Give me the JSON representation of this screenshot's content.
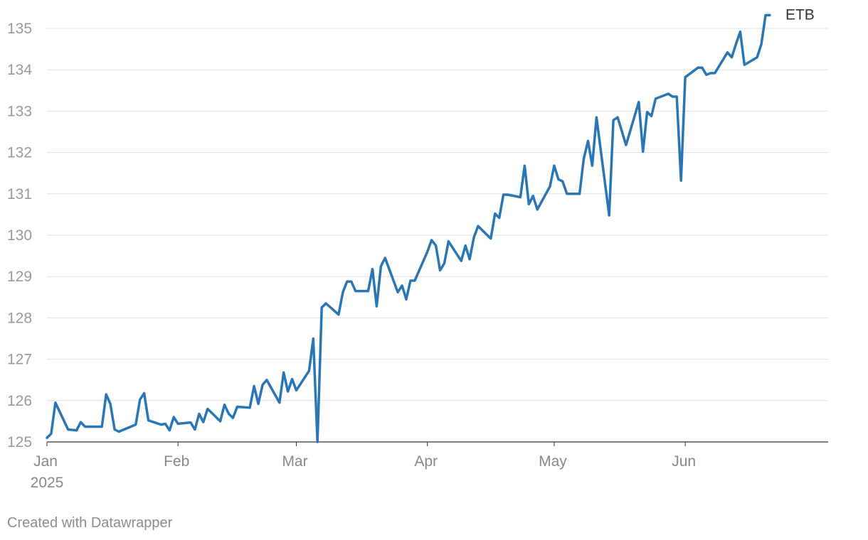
{
  "chart_data": {
    "type": "line",
    "title": "",
    "xlabel": "",
    "ylabel": "",
    "xlim": [
      "2025-01-01",
      "2025-06-20"
    ],
    "ylim": [
      125,
      135
    ],
    "grid": true,
    "y_ticks": [
      "125",
      "126",
      "127",
      "128",
      "129",
      "130",
      "131",
      "132",
      "133",
      "134",
      "135"
    ],
    "x_ticks": [
      {
        "date": "2025-01-01",
        "label": "Jan",
        "sublabel": "2025"
      },
      {
        "date": "2025-02-01",
        "label": "Feb",
        "sublabel": ""
      },
      {
        "date": "2025-03-01",
        "label": "Mar",
        "sublabel": ""
      },
      {
        "date": "2025-04-01",
        "label": "Apr",
        "sublabel": ""
      },
      {
        "date": "2025-05-01",
        "label": "May",
        "sublabel": ""
      },
      {
        "date": "2025-06-01",
        "label": "Jun",
        "sublabel": ""
      }
    ],
    "series": [
      {
        "name": "ETB",
        "color": "#2a76b4",
        "points": [
          [
            "2025-01-01",
            125.1
          ],
          [
            "2025-01-02",
            125.2
          ],
          [
            "2025-01-03",
            125.95
          ],
          [
            "2025-01-06",
            125.3
          ],
          [
            "2025-01-08",
            125.28
          ],
          [
            "2025-01-09",
            125.48
          ],
          [
            "2025-01-10",
            125.37
          ],
          [
            "2025-01-14",
            125.37
          ],
          [
            "2025-01-15",
            126.15
          ],
          [
            "2025-01-16",
            125.92
          ],
          [
            "2025-01-17",
            125.3
          ],
          [
            "2025-01-18",
            125.25
          ],
          [
            "2025-01-22",
            125.42
          ],
          [
            "2025-01-23",
            126.02
          ],
          [
            "2025-01-24",
            126.18
          ],
          [
            "2025-01-25",
            125.52
          ],
          [
            "2025-01-28",
            125.42
          ],
          [
            "2025-01-29",
            125.44
          ],
          [
            "2025-01-30",
            125.28
          ],
          [
            "2025-01-31",
            125.6
          ],
          [
            "2025-02-01",
            125.44
          ],
          [
            "2025-02-04",
            125.47
          ],
          [
            "2025-02-05",
            125.3
          ],
          [
            "2025-02-06",
            125.68
          ],
          [
            "2025-02-07",
            125.48
          ],
          [
            "2025-02-08",
            125.8
          ],
          [
            "2025-02-11",
            125.5
          ],
          [
            "2025-02-12",
            125.9
          ],
          [
            "2025-02-13",
            125.68
          ],
          [
            "2025-02-14",
            125.58
          ],
          [
            "2025-02-15",
            125.85
          ],
          [
            "2025-02-18",
            125.83
          ],
          [
            "2025-02-19",
            126.35
          ],
          [
            "2025-02-20",
            125.92
          ],
          [
            "2025-02-21",
            126.38
          ],
          [
            "2025-02-22",
            126.5
          ],
          [
            "2025-02-25",
            125.95
          ],
          [
            "2025-02-26",
            126.68
          ],
          [
            "2025-02-27",
            126.22
          ],
          [
            "2025-02-28",
            126.52
          ],
          [
            "2025-03-01",
            126.25
          ],
          [
            "2025-03-04",
            126.72
          ],
          [
            "2025-03-05",
            127.5
          ],
          [
            "2025-03-06",
            125.0
          ],
          [
            "2025-03-07",
            128.25
          ],
          [
            "2025-03-08",
            128.35
          ],
          [
            "2025-03-11",
            128.08
          ],
          [
            "2025-03-12",
            128.62
          ],
          [
            "2025-03-13",
            128.88
          ],
          [
            "2025-03-14",
            128.88
          ],
          [
            "2025-03-15",
            128.65
          ],
          [
            "2025-03-18",
            128.65
          ],
          [
            "2025-03-19",
            129.18
          ],
          [
            "2025-03-20",
            128.28
          ],
          [
            "2025-03-21",
            129.25
          ],
          [
            "2025-03-22",
            129.45
          ],
          [
            "2025-03-25",
            128.62
          ],
          [
            "2025-03-26",
            128.78
          ],
          [
            "2025-03-27",
            128.45
          ],
          [
            "2025-03-28",
            128.9
          ],
          [
            "2025-03-29",
            128.9
          ],
          [
            "2025-04-01",
            129.6
          ],
          [
            "2025-04-02",
            129.88
          ],
          [
            "2025-04-03",
            129.75
          ],
          [
            "2025-04-04",
            129.15
          ],
          [
            "2025-04-05",
            129.32
          ],
          [
            "2025-04-06",
            129.85
          ],
          [
            "2025-04-09",
            129.38
          ],
          [
            "2025-04-10",
            129.75
          ],
          [
            "2025-04-11",
            129.42
          ],
          [
            "2025-04-12",
            129.95
          ],
          [
            "2025-04-13",
            130.22
          ],
          [
            "2025-04-16",
            129.92
          ],
          [
            "2025-04-17",
            130.52
          ],
          [
            "2025-04-18",
            130.42
          ],
          [
            "2025-04-19",
            130.98
          ],
          [
            "2025-04-20",
            130.98
          ],
          [
            "2025-04-23",
            130.92
          ],
          [
            "2025-04-24",
            131.68
          ],
          [
            "2025-04-25",
            130.75
          ],
          [
            "2025-04-26",
            130.95
          ],
          [
            "2025-04-27",
            130.62
          ],
          [
            "2025-04-30",
            131.18
          ],
          [
            "2025-05-01",
            131.68
          ],
          [
            "2025-05-02",
            131.35
          ],
          [
            "2025-05-03",
            131.3
          ],
          [
            "2025-05-04",
            131.0
          ],
          [
            "2025-05-07",
            131.0
          ],
          [
            "2025-05-08",
            131.85
          ],
          [
            "2025-05-09",
            132.28
          ],
          [
            "2025-05-10",
            131.68
          ],
          [
            "2025-05-11",
            132.85
          ],
          [
            "2025-05-14",
            130.48
          ],
          [
            "2025-05-15",
            132.78
          ],
          [
            "2025-05-16",
            132.85
          ],
          [
            "2025-05-18",
            132.18
          ],
          [
            "2025-05-21",
            133.22
          ],
          [
            "2025-05-22",
            132.02
          ],
          [
            "2025-05-23",
            132.98
          ],
          [
            "2025-05-24",
            132.88
          ],
          [
            "2025-05-25",
            133.3
          ],
          [
            "2025-05-28",
            133.42
          ],
          [
            "2025-05-29",
            133.35
          ],
          [
            "2025-05-30",
            133.35
          ],
          [
            "2025-05-31",
            131.32
          ],
          [
            "2025-06-01",
            133.82
          ],
          [
            "2025-06-04",
            134.05
          ],
          [
            "2025-06-05",
            134.05
          ],
          [
            "2025-06-06",
            133.88
          ],
          [
            "2025-06-07",
            133.92
          ],
          [
            "2025-06-08",
            133.92
          ],
          [
            "2025-06-11",
            134.42
          ],
          [
            "2025-06-12",
            134.3
          ],
          [
            "2025-06-13",
            134.62
          ],
          [
            "2025-06-14",
            134.92
          ],
          [
            "2025-06-15",
            134.12
          ],
          [
            "2025-06-18",
            134.3
          ],
          [
            "2025-06-19",
            134.62
          ],
          [
            "2025-06-20",
            135.32
          ],
          [
            "2025-06-21",
            135.32
          ]
        ]
      }
    ]
  },
  "footer": {
    "credit": "Created with Datawrapper"
  }
}
